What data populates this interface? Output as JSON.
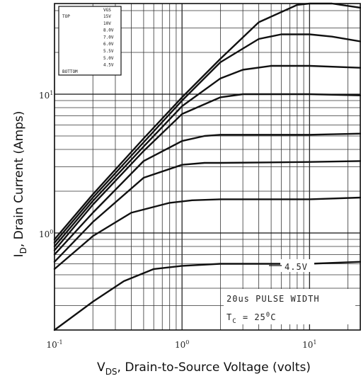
{
  "chart_data": {
    "type": "line",
    "title": "",
    "xlabel_main": "V",
    "xlabel_sub": "DS",
    "xlabel_rest": ", Drain-to-Source Voltage (volts)",
    "ylabel_main": "I",
    "ylabel_sub": "D",
    "ylabel_rest": ", Drain Current (Amps)",
    "x_scale": "log",
    "y_scale": "log",
    "xlim": [
      0.1,
      25
    ],
    "ylim": [
      0.2,
      45
    ],
    "grid": true,
    "x_ticks": [
      {
        "value": 0.1,
        "base": "10",
        "exp": "-1"
      },
      {
        "value": 1,
        "base": "10",
        "exp": "0"
      },
      {
        "value": 10,
        "base": "10",
        "exp": "1"
      }
    ],
    "y_ticks": [
      {
        "value": 1,
        "base": "10",
        "exp": "0"
      },
      {
        "value": 10,
        "base": "10",
        "exp": "1"
      }
    ],
    "legend": {
      "position": "top-left",
      "header": "VGS",
      "top_label": "TOP",
      "bottom_label": "BOTTOM",
      "entries": [
        "15V",
        "10V",
        "8.0V",
        "7.0V",
        "6.0V",
        "5.5V",
        "5.0V",
        "4.5V"
      ]
    },
    "annotations": {
      "curve_label": "4.5V",
      "pulse_text": "20us PULSE WIDTH",
      "tc_main": "T",
      "tc_sub": "C",
      "tc_rest": " = 25",
      "tc_sup": "0",
      "tc_unit": "C"
    },
    "series": [
      {
        "name": "15V",
        "x": [
          0.1,
          0.2,
          0.5,
          1,
          2,
          4,
          8,
          10,
          15,
          25
        ],
        "y": [
          0.9,
          1.9,
          4.8,
          9.5,
          18,
          33,
          44,
          45,
          45,
          42
        ]
      },
      {
        "name": "10V",
        "x": [
          0.1,
          0.2,
          0.5,
          1,
          2,
          4,
          6,
          10,
          15,
          25
        ],
        "y": [
          0.85,
          1.8,
          4.5,
          9,
          17,
          25,
          27,
          27,
          26,
          24
        ]
      },
      {
        "name": "8.0V",
        "x": [
          0.1,
          0.2,
          0.5,
          1,
          2,
          3,
          5,
          10,
          25
        ],
        "y": [
          0.8,
          1.7,
          4.2,
          8.2,
          13,
          15,
          16,
          16,
          15.5
        ]
      },
      {
        "name": "7.0V",
        "x": [
          0.1,
          0.2,
          0.5,
          1,
          2,
          3,
          10,
          25
        ],
        "y": [
          0.75,
          1.6,
          3.9,
          7.2,
          9.5,
          10,
          10,
          9.8
        ]
      },
      {
        "name": "6.0V",
        "x": [
          0.1,
          0.2,
          0.5,
          1,
          1.5,
          2,
          10,
          25
        ],
        "y": [
          0.7,
          1.4,
          3.3,
          4.6,
          5.0,
          5.1,
          5.1,
          5.2
        ]
      },
      {
        "name": "5.5V",
        "x": [
          0.1,
          0.2,
          0.5,
          1,
          1.5,
          2,
          10,
          25
        ],
        "y": [
          0.62,
          1.2,
          2.5,
          3.1,
          3.2,
          3.2,
          3.25,
          3.3
        ]
      },
      {
        "name": "5.0V",
        "x": [
          0.1,
          0.2,
          0.4,
          0.8,
          1.2,
          2,
          10,
          25
        ],
        "y": [
          0.55,
          0.95,
          1.4,
          1.65,
          1.72,
          1.75,
          1.75,
          1.8
        ]
      },
      {
        "name": "4.5V",
        "x": [
          0.1,
          0.2,
          0.35,
          0.6,
          1,
          2,
          10,
          25
        ],
        "y": [
          0.2,
          0.32,
          0.45,
          0.55,
          0.58,
          0.6,
          0.6,
          0.62
        ]
      }
    ]
  }
}
